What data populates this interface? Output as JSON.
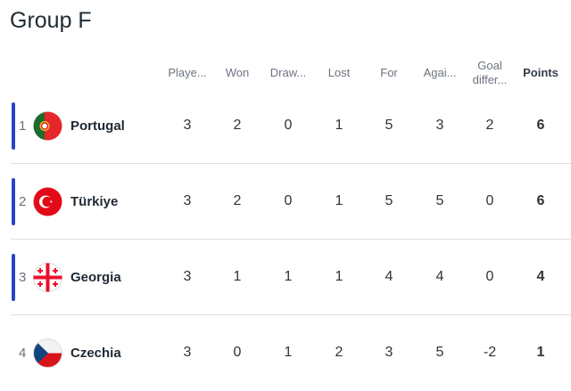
{
  "title": "Group F",
  "headers": [
    {
      "label": "Playe..."
    },
    {
      "label": "Won"
    },
    {
      "label": "Draw..."
    },
    {
      "label": "Lost"
    },
    {
      "label": "For"
    },
    {
      "label": "Agai..."
    },
    {
      "label": "Goal differ..."
    },
    {
      "label": "Points"
    }
  ],
  "qualify_color": "#2a44c8",
  "rows": [
    {
      "pos": "1",
      "team": "Portugal",
      "flag": "portugal-flag-icon",
      "qualified": true,
      "stats": [
        "3",
        "2",
        "0",
        "1",
        "5",
        "3",
        "2",
        "6"
      ]
    },
    {
      "pos": "2",
      "team": "Türkiye",
      "flag": "turkey-flag-icon",
      "qualified": true,
      "stats": [
        "3",
        "2",
        "0",
        "1",
        "5",
        "5",
        "0",
        "6"
      ]
    },
    {
      "pos": "3",
      "team": "Georgia",
      "flag": "georgia-flag-icon",
      "qualified": true,
      "stats": [
        "3",
        "1",
        "1",
        "1",
        "4",
        "4",
        "0",
        "4"
      ]
    },
    {
      "pos": "4",
      "team": "Czechia",
      "flag": "czechia-flag-icon",
      "qualified": false,
      "stats": [
        "3",
        "0",
        "1",
        "2",
        "3",
        "5",
        "-2",
        "1"
      ]
    }
  ]
}
